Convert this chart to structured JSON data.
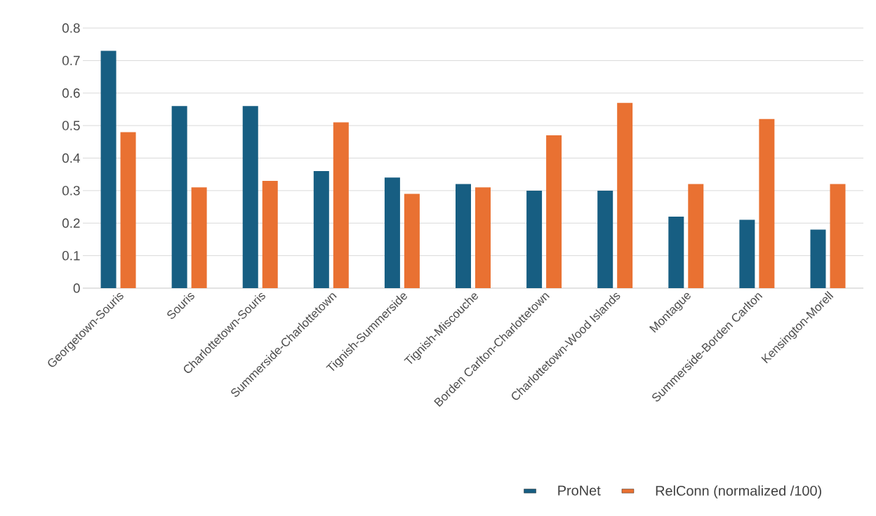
{
  "chart_data": {
    "type": "bar",
    "categories": [
      "Georgetown-Souris",
      "Souris",
      "Charlottetown-Souris",
      "Summerside-Charlottetown",
      "Tignish-Summerside",
      "Tignish-Miscouche",
      "Borden Carlton-Charlottetown",
      "Charlottetown-Wood Islands",
      "Montague",
      "Summerside-Borden Carlton",
      "Kensington-Morell"
    ],
    "series": [
      {
        "name": "ProNet",
        "color": "#175e82",
        "values": [
          0.73,
          0.56,
          0.56,
          0.36,
          0.34,
          0.32,
          0.3,
          0.3,
          0.22,
          0.21,
          0.18
        ]
      },
      {
        "name": "RelConn (normalized /100)",
        "color": "#e97132",
        "values": [
          0.48,
          0.31,
          0.33,
          0.51,
          0.29,
          0.31,
          0.47,
          0.57,
          0.32,
          0.52,
          0.32
        ]
      }
    ],
    "ylim": [
      0,
      0.8
    ],
    "yticks": [
      0,
      0.1,
      0.2,
      0.3,
      0.4,
      0.5,
      0.6,
      0.7,
      0.8
    ],
    "grid": "y",
    "legend": "bottom"
  }
}
